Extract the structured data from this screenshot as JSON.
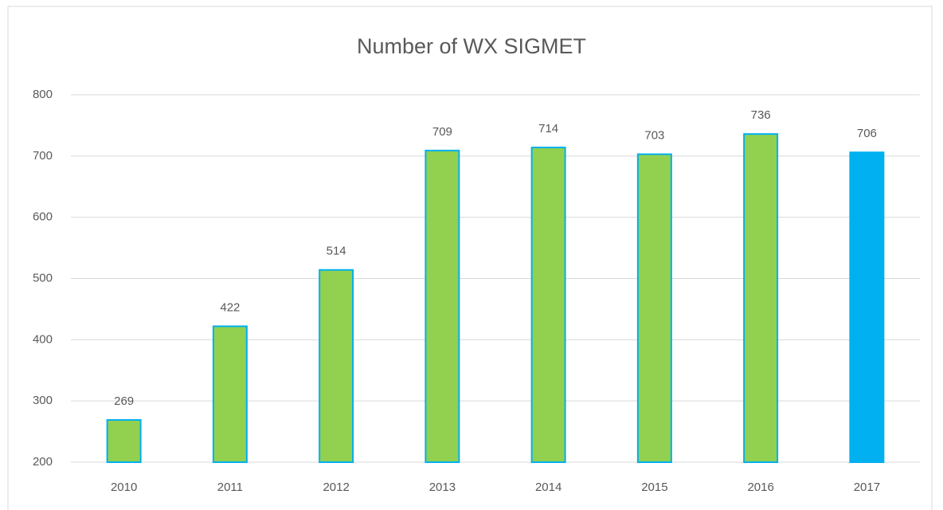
{
  "chart_data": {
    "type": "bar",
    "title": "Number of WX SIGMET",
    "categories": [
      "2010",
      "2011",
      "2012",
      "2013",
      "2014",
      "2015",
      "2016",
      "2017"
    ],
    "values": [
      269,
      422,
      514,
      709,
      714,
      703,
      736,
      706
    ],
    "colors": [
      "#92d050",
      "#92d050",
      "#92d050",
      "#92d050",
      "#92d050",
      "#92d050",
      "#92d050",
      "#00b0f0"
    ],
    "edgecolor": "#00b0f0",
    "ylim": [
      200,
      800
    ],
    "yticks": [
      200,
      300,
      400,
      500,
      600,
      700,
      800
    ],
    "grid": true
  }
}
